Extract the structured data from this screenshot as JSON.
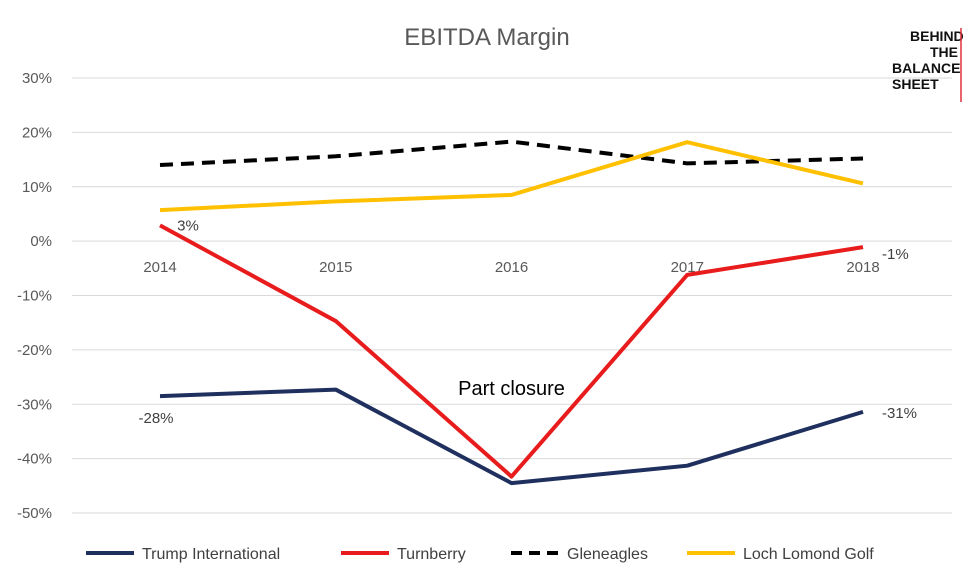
{
  "chart_data": {
    "type": "line",
    "title": "EBITDA Margin",
    "categories": [
      "2014",
      "2015",
      "2016",
      "2017",
      "2018"
    ],
    "ylim": [
      -50,
      30
    ],
    "yticks": [
      {
        "value": 30,
        "label": "30%"
      },
      {
        "value": 20,
        "label": "20%"
      },
      {
        "value": 10,
        "label": "10%"
      },
      {
        "value": 0,
        "label": "0%"
      },
      {
        "value": -10,
        "label": "-10%"
      },
      {
        "value": -20,
        "label": "-20%"
      },
      {
        "value": -30,
        "label": "-30%"
      },
      {
        "value": -40,
        "label": "-40%"
      },
      {
        "value": -50,
        "label": "-50%"
      }
    ],
    "grid": true,
    "legend_position": "bottom",
    "series": [
      {
        "name": "Trump International",
        "color": "#1f2f5e",
        "dash": "solid",
        "values": [
          -28.5,
          -27.3,
          -44.5,
          -41.3,
          -31.4
        ]
      },
      {
        "name": "Turnberry",
        "color": "#e81c1c",
        "dash": "solid",
        "values": [
          2.9,
          -14.7,
          -43.3,
          -6.2,
          -1.1
        ]
      },
      {
        "name": "Gleneagles",
        "color": "#000000",
        "dash": "dashed",
        "values": [
          14.0,
          15.6,
          18.3,
          14.3,
          15.2
        ]
      },
      {
        "name": "Loch Lomond Golf",
        "color": "#ffc000",
        "dash": "solid",
        "values": [
          5.7,
          7.3,
          8.5,
          18.2,
          10.6
        ]
      }
    ],
    "data_labels": [
      {
        "series": "Turnberry",
        "index": 0,
        "text": "3%"
      },
      {
        "series": "Turnberry",
        "index": 4,
        "text": "-1%"
      },
      {
        "series": "Trump International",
        "index": 0,
        "text": "-28%"
      },
      {
        "series": "Trump International",
        "index": 4,
        "text": "-31%"
      }
    ],
    "annotations": [
      {
        "text": "Part closure",
        "x": "2016",
        "y": -27
      }
    ]
  },
  "logo": {
    "lines": [
      "BEHIND",
      "THE",
      "BALANCE",
      "SHEET"
    ]
  }
}
